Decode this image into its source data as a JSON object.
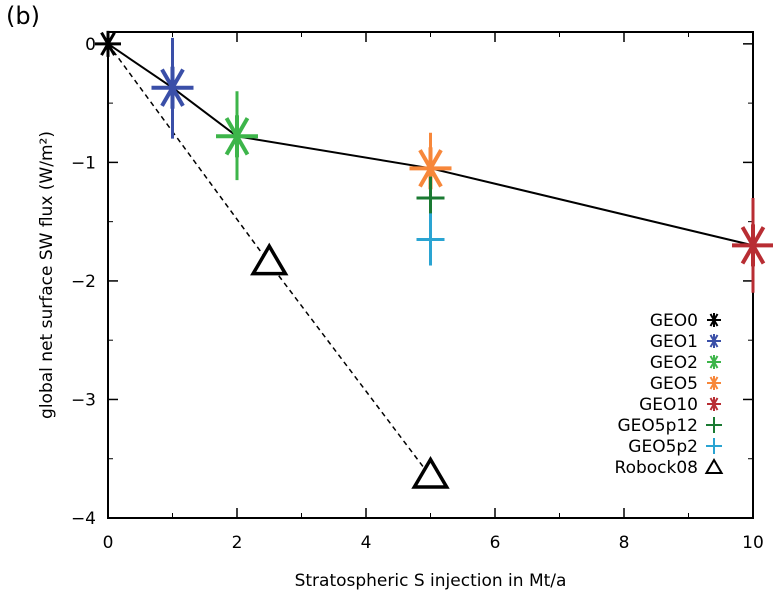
{
  "panel_label": "(b)",
  "chart_data": {
    "type": "scatter",
    "title": "",
    "xlabel": "Stratospheric S injection in Mt/a",
    "ylabel": "global net surface SW flux (W/m²)",
    "xlim": [
      0,
      10
    ],
    "ylim": [
      -4,
      0.1
    ],
    "xticks": [
      "0",
      "2",
      "4",
      "6",
      "8",
      "10"
    ],
    "yticks": [
      "0",
      "−1",
      "−2",
      "−3",
      "−4"
    ],
    "grid": false,
    "legend_position": "bottom-right",
    "series": [
      {
        "name": "GEO0",
        "marker": "asterisk",
        "color": "#000000",
        "x": 0,
        "y": 0.0,
        "err_low": 0.0,
        "err_high": 0.0
      },
      {
        "name": "GEO1",
        "marker": "asterisk",
        "color": "#3a4fa8",
        "x": 1,
        "y": -0.37,
        "err_low": -0.8,
        "err_high": 0.05
      },
      {
        "name": "GEO2",
        "marker": "asterisk",
        "color": "#3db54a",
        "x": 2,
        "y": -0.78,
        "err_low": -1.15,
        "err_high": -0.4
      },
      {
        "name": "GEO5",
        "marker": "asterisk",
        "color": "#f7873a",
        "x": 5,
        "y": -1.05,
        "err_low": -1.32,
        "err_high": -0.75
      },
      {
        "name": "GEO10",
        "marker": "asterisk",
        "color": "#b82d33",
        "x": 10,
        "y": -1.7,
        "err_low": -2.1,
        "err_high": -1.3
      },
      {
        "name": "GEO5p12",
        "marker": "plus",
        "color": "#1a7a32",
        "x": 5,
        "y": -1.3,
        "err_low": -1.48,
        "err_high": -1.12
      },
      {
        "name": "GEO5p2",
        "marker": "plus",
        "color": "#2aa4d2",
        "x": 5,
        "y": -1.65,
        "err_low": -1.87,
        "err_high": -1.43
      },
      {
        "name": "Robock08",
        "marker": "triangle",
        "color": "#000000",
        "points": [
          {
            "x": 2.5,
            "y": -1.85
          },
          {
            "x": 5,
            "y": -3.65
          }
        ]
      }
    ],
    "lines": [
      {
        "style": "solid",
        "points": [
          [
            0,
            0.0
          ],
          [
            1,
            -0.37
          ],
          [
            2,
            -0.78
          ],
          [
            5,
            -1.05
          ],
          [
            10,
            -1.7
          ]
        ]
      },
      {
        "style": "dashed",
        "points": [
          [
            0,
            0.0
          ],
          [
            2.5,
            -1.85
          ],
          [
            5,
            -3.65
          ]
        ]
      }
    ]
  }
}
